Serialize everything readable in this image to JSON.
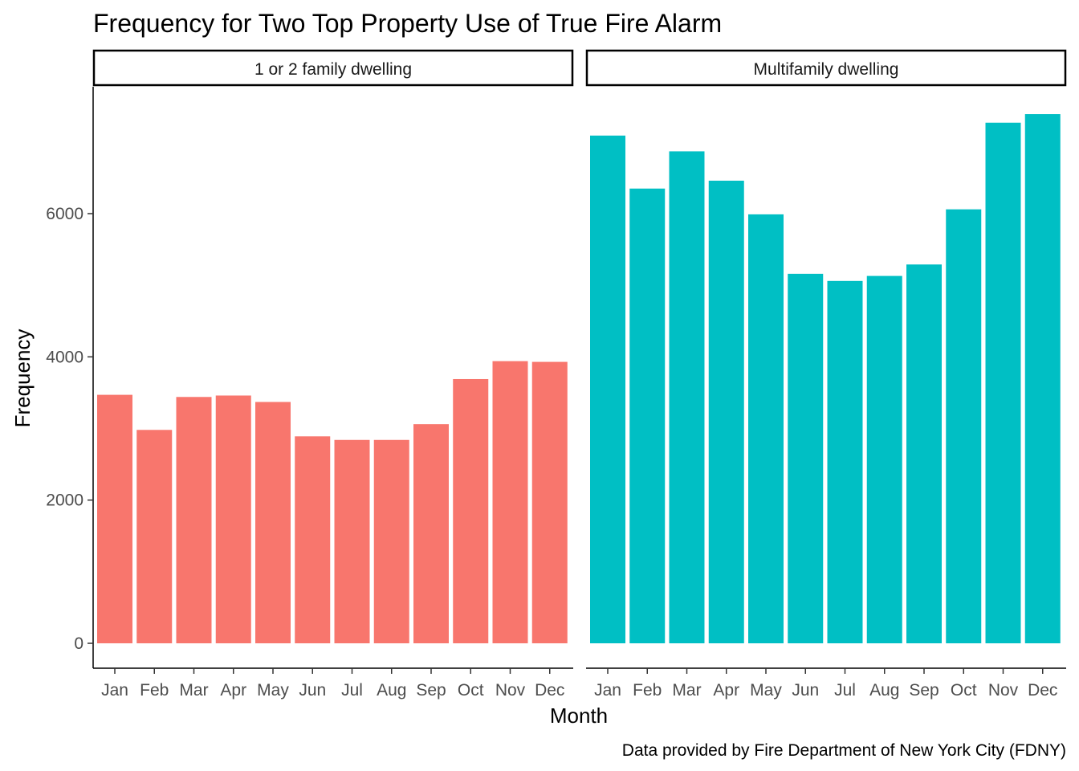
{
  "chart_data": {
    "type": "bar",
    "title": "Frequency for Two Top Property Use of True Fire Alarm",
    "xlabel": "Month",
    "ylabel": "Frequency",
    "caption": "Data provided by Fire Department of New York City (FDNY)",
    "categories": [
      "Jan",
      "Feb",
      "Mar",
      "Apr",
      "May",
      "Jun",
      "Jul",
      "Aug",
      "Sep",
      "Oct",
      "Nov",
      "Dec"
    ],
    "ylim": [
      0,
      7400
    ],
    "yticks": [
      0,
      2000,
      4000,
      6000
    ],
    "ytick_labels": [
      "0",
      "2000",
      "4000",
      "6000"
    ],
    "grid": false,
    "legend": "none",
    "facets": [
      {
        "label": "1 or 2 family dwelling",
        "color": "#F8766D",
        "values": [
          3470,
          2980,
          3440,
          3460,
          3370,
          2890,
          2840,
          2840,
          3060,
          3690,
          3940,
          3930
        ]
      },
      {
        "label": "Multifamily dwelling",
        "color": "#00BFC4",
        "values": [
          7090,
          6350,
          6870,
          6460,
          5990,
          5160,
          5060,
          5130,
          5290,
          6060,
          7270,
          7390
        ]
      }
    ]
  }
}
